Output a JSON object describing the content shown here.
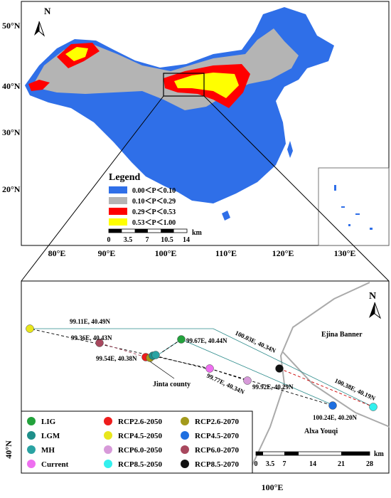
{
  "top_map": {
    "north": "N",
    "lat_labels": [
      "50°N",
      "40°N",
      "30°N",
      "20°N"
    ],
    "lon_labels": [
      "80°E",
      "90°E",
      "100°E",
      "110°E",
      "120°E",
      "130°E"
    ],
    "legend_title": "Legend",
    "legend": [
      {
        "label": "0.00＜P＜0.10",
        "color": "#2f6fe8"
      },
      {
        "label": "0.10＜P＜0.29",
        "color": "#b4b4b4"
      },
      {
        "label": "0.29＜P＜0.53",
        "color": "#ff0000"
      },
      {
        "label": "0.53＜P＜1.00",
        "color": "#ffff00"
      }
    ],
    "scale_labels": [
      "0",
      "3.5",
      "7",
      "10.5",
      "14"
    ],
    "scale_unit": "km"
  },
  "bottom_map": {
    "north": "N",
    "places": [
      "Ejina Banner",
      "Jinta county",
      "Alxa Youqi"
    ],
    "coord_labels": [
      "99.11E, 40.49N",
      "99.36E, 40.43N",
      "99.54E, 40.38N",
      "99.67E, 40.44N",
      "100.03E, 40.34N",
      "99.77E, 40.34N",
      "99.92E, 40.29N",
      "100.38E, 40.19N",
      "100.24E, 40.20N"
    ],
    "legend": [
      {
        "name": "LIG",
        "color": "#23a23c"
      },
      {
        "name": "RCP2.6-2050",
        "color": "#ee1c1c"
      },
      {
        "name": "RCP2.6-2070",
        "color": "#a39a1c"
      },
      {
        "name": "LGM",
        "color": "#1f8f8a"
      },
      {
        "name": "RCP4.5-2050",
        "color": "#e8e61c"
      },
      {
        "name": "RCP4.5-2070",
        "color": "#1f6fe0"
      },
      {
        "name": "MH",
        "color": "#2aa3a3"
      },
      {
        "name": "RCP6.0-2050",
        "color": "#d79ad9"
      },
      {
        "name": "RCP6.0-2070",
        "color": "#a8485e"
      },
      {
        "name": "Current",
        "color": "#ee6ff0"
      },
      {
        "name": "RCP8.5-2050",
        "color": "#33f0ee"
      },
      {
        "name": "RCP8.5-2070",
        "color": "#111111"
      }
    ],
    "scale_labels": [
      "0",
      "3.5",
      "7",
      "14",
      "21",
      "28"
    ],
    "scale_unit": "km",
    "lat_label": "40°N",
    "lon_label": "100°E"
  }
}
